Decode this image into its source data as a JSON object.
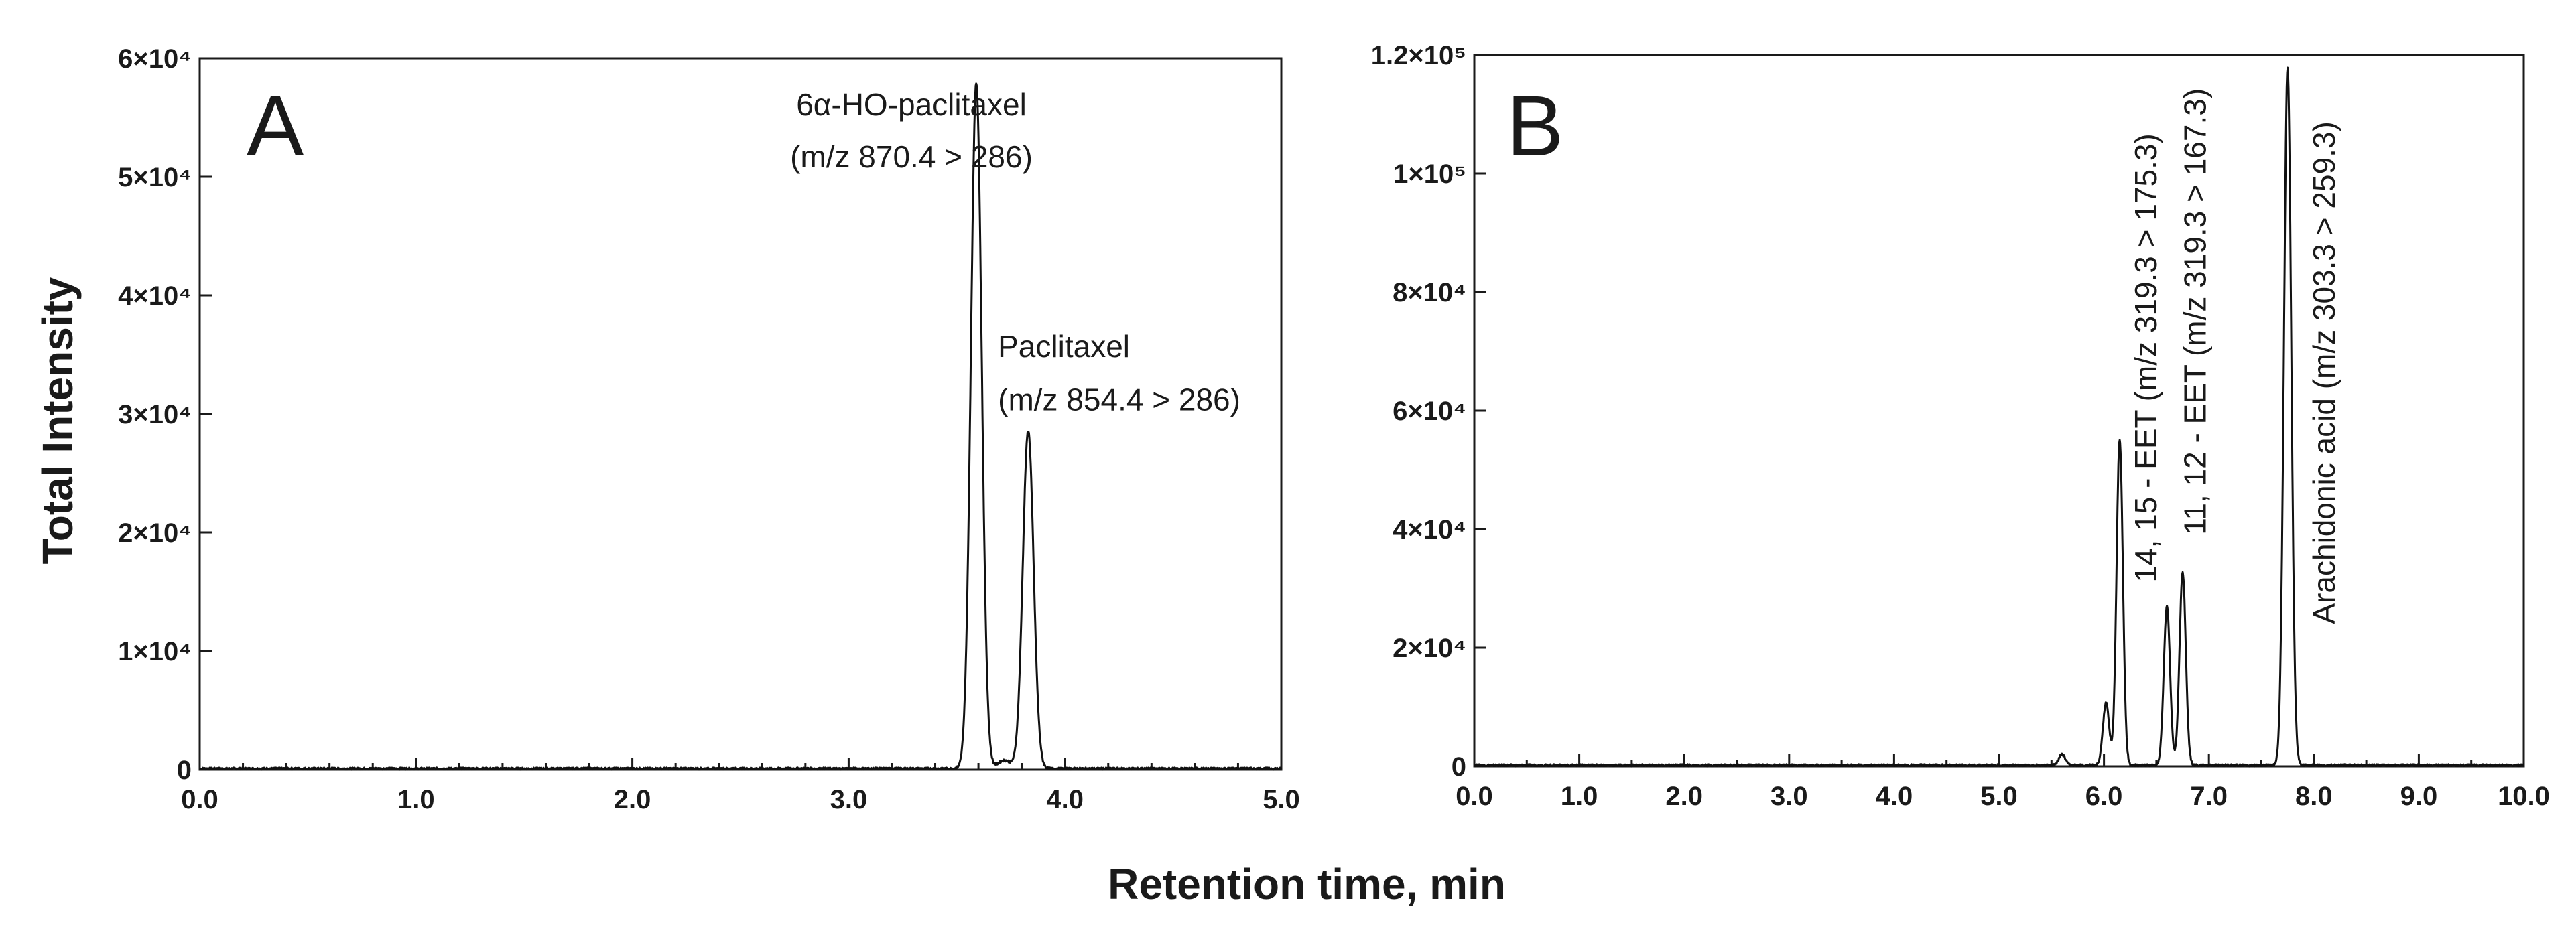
{
  "chart_data": [
    {
      "panel": "A",
      "type": "line",
      "xlabel": "Retention time, min",
      "ylabel": "Total Intensity",
      "xlim": [
        0,
        5
      ],
      "ylim": [
        0,
        60000
      ],
      "x_ticks": [
        "0.0",
        "1.0",
        "2.0",
        "3.0",
        "4.0",
        "5.0"
      ],
      "y_ticks": [
        "0",
        "1×10⁴",
        "2×10⁴",
        "3×10⁴",
        "4×10⁴",
        "5×10⁴",
        "6×10⁴"
      ],
      "peaks": [
        {
          "x": 3.59,
          "y": 57800,
          "width": 0.025
        },
        {
          "x": 3.83,
          "y": 28500,
          "width": 0.025
        },
        {
          "x": 3.72,
          "y": 700,
          "width": 0.03
        }
      ],
      "annotations": [
        {
          "text": "6α-HO-paclitaxel",
          "x": 3.29,
          "y": 55200,
          "anchor": "middle",
          "rotate": false
        },
        {
          "text": "(m/z 870.4 > 286)",
          "x": 3.29,
          "y": 50800,
          "anchor": "middle",
          "rotate": false
        },
        {
          "text": "Paclitaxel",
          "x": 3.69,
          "y": 34800,
          "anchor": "start",
          "rotate": false
        },
        {
          "text": "(m/z 854.4 > 286)",
          "x": 3.69,
          "y": 30300,
          "anchor": "start",
          "rotate": false
        }
      ]
    },
    {
      "panel": "B",
      "type": "line",
      "xlabel": "Retention time, min",
      "ylabel": "",
      "xlim": [
        0,
        10
      ],
      "ylim": [
        0,
        120000
      ],
      "x_ticks": [
        "0.0",
        "1.0",
        "2.0",
        "3.0",
        "4.0",
        "5.0",
        "6.0",
        "7.0",
        "8.0",
        "9.0",
        "10.0"
      ],
      "y_ticks": [
        "0",
        "2×10⁴",
        "4×10⁴",
        "6×10⁴",
        "8×10⁴",
        "1×10⁵",
        "1.2×10⁵"
      ],
      "peaks": [
        {
          "x": 5.6,
          "y": 1800,
          "width": 0.03
        },
        {
          "x": 6.02,
          "y": 10500,
          "width": 0.03
        },
        {
          "x": 6.15,
          "y": 55000,
          "width": 0.03
        },
        {
          "x": 6.6,
          "y": 26800,
          "width": 0.03
        },
        {
          "x": 6.75,
          "y": 32500,
          "width": 0.03
        },
        {
          "x": 7.75,
          "y": 117500,
          "width": 0.035
        }
      ],
      "annotations": [
        {
          "text": "14, 15 - EET (m/z 319.3 > 175.3)",
          "x": 6.5,
          "y": 31000,
          "anchor": "start",
          "rotate": true
        },
        {
          "text": "11, 12 - EET (m/z 319.3 > 167.3)",
          "x": 6.97,
          "y": 39000,
          "anchor": "start",
          "rotate": true
        },
        {
          "text": "Arachidonic acid (m/z 303.3 > 259.3)",
          "x": 8.2,
          "y": 24000,
          "anchor": "start",
          "rotate": true
        }
      ]
    }
  ],
  "panel_labels": [
    "A",
    "B"
  ],
  "axis_titles": {
    "y": "Total Intensity",
    "x": "Retention time, min"
  }
}
